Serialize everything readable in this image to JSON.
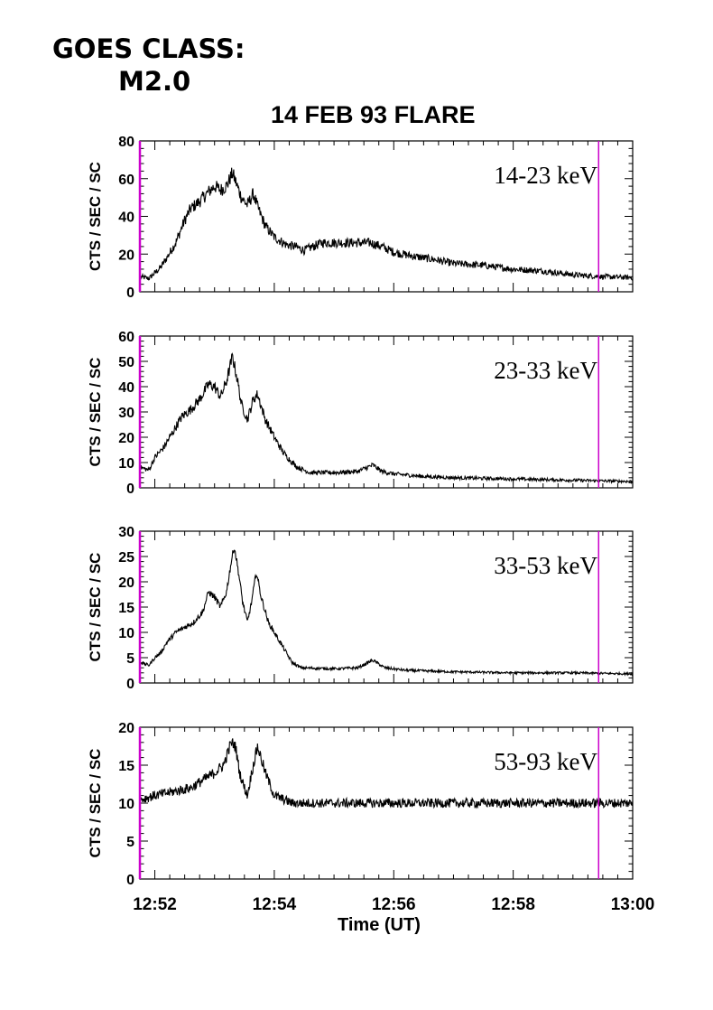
{
  "header": {
    "goes_line1": "GOES CLASS:",
    "goes_line2": "M2.0"
  },
  "chart_data": {
    "type": "line",
    "title": "14 FEB 93 FLARE",
    "xlabel": "Time (UT)",
    "x_ticks": [
      "12:52",
      "12:54",
      "12:56",
      "12:58",
      "13:00"
    ],
    "x_range_minutes": [
      51.75,
      60.0
    ],
    "marker_times_minutes": [
      51.75,
      59.43
    ],
    "marker_color": "#cc00cc",
    "line_color": "#000000",
    "panels": [
      {
        "label": "14-23 keV",
        "ylabel": "CTS / SEC / SC",
        "ylim": [
          0,
          80
        ],
        "yticks": [
          0,
          20,
          40,
          60,
          80
        ],
        "noise": 1.4,
        "points": [
          [
            51.77,
            8
          ],
          [
            51.9,
            7
          ],
          [
            52.0,
            10
          ],
          [
            52.1,
            13
          ],
          [
            52.2,
            18
          ],
          [
            52.35,
            26
          ],
          [
            52.5,
            38
          ],
          [
            52.6,
            44
          ],
          [
            52.75,
            48
          ],
          [
            52.9,
            53
          ],
          [
            53.0,
            56
          ],
          [
            53.1,
            54
          ],
          [
            53.2,
            56
          ],
          [
            53.3,
            63
          ],
          [
            53.37,
            57
          ],
          [
            53.45,
            50
          ],
          [
            53.55,
            46
          ],
          [
            53.65,
            52
          ],
          [
            53.72,
            45
          ],
          [
            53.85,
            35
          ],
          [
            54.0,
            29
          ],
          [
            54.2,
            25
          ],
          [
            54.35,
            24
          ],
          [
            54.5,
            22
          ],
          [
            54.65,
            24
          ],
          [
            54.8,
            26
          ],
          [
            55.0,
            26
          ],
          [
            55.3,
            26
          ],
          [
            55.6,
            26
          ],
          [
            55.8,
            24
          ],
          [
            56.0,
            21
          ],
          [
            56.3,
            19
          ],
          [
            56.7,
            17
          ],
          [
            57.0,
            15
          ],
          [
            57.5,
            14
          ],
          [
            58.0,
            12
          ],
          [
            58.5,
            11
          ],
          [
            59.0,
            9
          ],
          [
            59.5,
            8
          ],
          [
            60.0,
            7.5
          ]
        ]
      },
      {
        "label": "23-33 keV",
        "ylabel": "CTS / SEC / SC",
        "ylim": [
          0,
          60
        ],
        "yticks": [
          0,
          10,
          20,
          30,
          40,
          50,
          60
        ],
        "noise": 1.0,
        "points": [
          [
            51.77,
            8
          ],
          [
            51.9,
            7
          ],
          [
            52.0,
            12
          ],
          [
            52.15,
            16
          ],
          [
            52.3,
            22
          ],
          [
            52.45,
            28
          ],
          [
            52.6,
            31
          ],
          [
            52.75,
            35
          ],
          [
            52.9,
            41
          ],
          [
            53.0,
            40
          ],
          [
            53.1,
            36
          ],
          [
            53.2,
            42
          ],
          [
            53.3,
            52
          ],
          [
            53.38,
            43
          ],
          [
            53.45,
            33
          ],
          [
            53.55,
            27
          ],
          [
            53.65,
            35
          ],
          [
            53.72,
            37
          ],
          [
            53.85,
            27
          ],
          [
            54.0,
            20
          ],
          [
            54.15,
            14
          ],
          [
            54.3,
            10
          ],
          [
            54.4,
            8
          ],
          [
            54.6,
            6
          ],
          [
            55.0,
            6
          ],
          [
            55.4,
            6.5
          ],
          [
            55.65,
            9
          ],
          [
            55.8,
            6.5
          ],
          [
            56.0,
            5.5
          ],
          [
            56.5,
            4.5
          ],
          [
            57.0,
            4
          ],
          [
            58.0,
            3.5
          ],
          [
            59.0,
            3
          ],
          [
            60.0,
            2.5
          ]
        ]
      },
      {
        "label": "33-53 keV",
        "ylabel": "CTS / SEC / SC",
        "ylim": [
          0,
          30
        ],
        "yticks": [
          0,
          5,
          10,
          15,
          20,
          25,
          30
        ],
        "noise": 0.45,
        "points": [
          [
            51.77,
            4
          ],
          [
            51.9,
            3.5
          ],
          [
            52.0,
            5
          ],
          [
            52.1,
            6
          ],
          [
            52.2,
            8
          ],
          [
            52.35,
            10
          ],
          [
            52.5,
            11
          ],
          [
            52.65,
            12
          ],
          [
            52.8,
            14
          ],
          [
            52.9,
            18
          ],
          [
            53.0,
            17
          ],
          [
            53.1,
            15
          ],
          [
            53.2,
            18
          ],
          [
            53.28,
            24
          ],
          [
            53.33,
            27
          ],
          [
            53.4,
            22
          ],
          [
            53.47,
            16
          ],
          [
            53.55,
            12
          ],
          [
            53.62,
            16
          ],
          [
            53.7,
            22
          ],
          [
            53.78,
            17
          ],
          [
            53.9,
            12
          ],
          [
            54.05,
            9
          ],
          [
            54.15,
            7
          ],
          [
            54.3,
            4
          ],
          [
            54.45,
            3
          ],
          [
            55.0,
            2.8
          ],
          [
            55.4,
            3
          ],
          [
            55.65,
            4.5
          ],
          [
            55.85,
            3
          ],
          [
            56.2,
            2.5
          ],
          [
            57.0,
            2.2
          ],
          [
            58.0,
            2
          ],
          [
            59.0,
            2
          ],
          [
            60.0,
            1.8
          ]
        ]
      },
      {
        "label": "53-93 keV",
        "ylabel": "CTS / SEC / SC",
        "ylim": [
          0,
          20
        ],
        "yticks": [
          0,
          5,
          10,
          15,
          20
        ],
        "noise": 0.55,
        "points": [
          [
            51.77,
            10.5
          ],
          [
            52.0,
            11
          ],
          [
            52.3,
            11.5
          ],
          [
            52.6,
            12
          ],
          [
            52.8,
            13
          ],
          [
            53.0,
            14
          ],
          [
            53.15,
            15
          ],
          [
            53.28,
            18
          ],
          [
            53.35,
            17.5
          ],
          [
            53.42,
            14
          ],
          [
            53.5,
            12
          ],
          [
            53.55,
            11
          ],
          [
            53.62,
            14
          ],
          [
            53.72,
            17.5
          ],
          [
            53.85,
            14
          ],
          [
            54.0,
            11
          ],
          [
            54.3,
            10
          ],
          [
            55.0,
            10
          ],
          [
            56.0,
            10
          ],
          [
            57.0,
            10
          ],
          [
            58.0,
            10
          ],
          [
            59.0,
            10
          ],
          [
            60.0,
            10
          ]
        ]
      }
    ]
  }
}
